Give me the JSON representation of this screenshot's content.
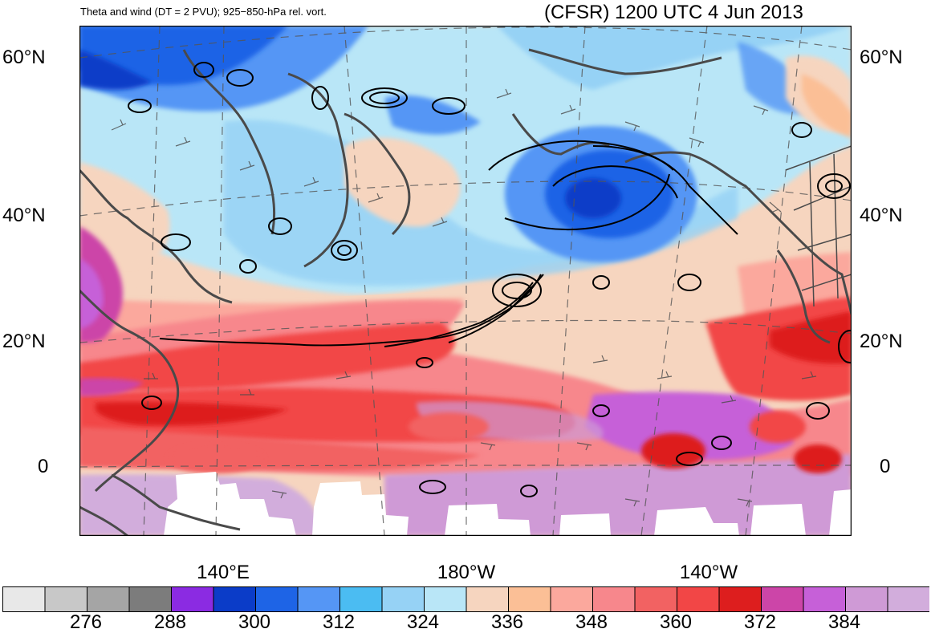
{
  "header": {
    "left_title": "Theta and wind (DT = 2 PVU); 925−850-hPa rel. vort.",
    "right_title": "(CFSR) 1200 UTC 4 Jun 2013"
  },
  "map": {
    "lat_labels": [
      "60°N",
      "40°N",
      "20°N",
      "0"
    ],
    "lon_labels": [
      "140°E",
      "180°W",
      "140°W"
    ],
    "fields": [
      "theta-fill",
      "vorticity-contours",
      "wind-barbs",
      "coastlines"
    ]
  },
  "colorbar": {
    "colors": [
      "#e8e8e8",
      "#c8c8c8",
      "#a5a5a5",
      "#7c7c7c",
      "#8b2be2",
      "#0b3cc8",
      "#1e64e6",
      "#5596f5",
      "#4bbcf2",
      "#96d2f5",
      "#b9e6f7",
      "#f6d5bf",
      "#fbbf96",
      "#fba89d",
      "#f7878c",
      "#f26262",
      "#f24646",
      "#dd1e1e",
      "#cc45a8",
      "#c660d8",
      "#cf9ad6",
      "#d2addc"
    ],
    "tick_labels": [
      "276",
      "288",
      "300",
      "312",
      "324",
      "336",
      "348",
      "360",
      "372",
      "384"
    ]
  }
}
